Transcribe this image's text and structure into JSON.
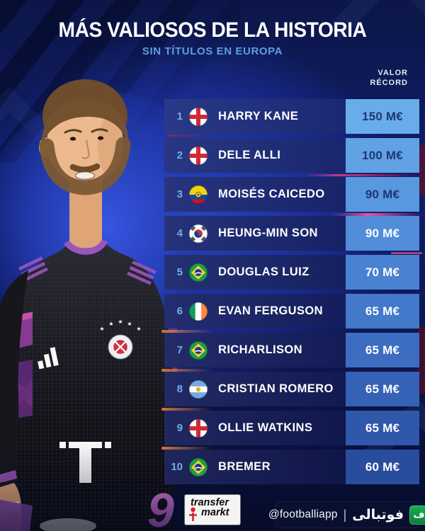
{
  "header": {
    "title": "MÁS VALIOSOS DE LA HISTORIA",
    "subtitle": "SIN TÍTULOS EN EUROPA"
  },
  "value_header": {
    "line1": "VALOR",
    "line2": "RÉCORD"
  },
  "table": {
    "rows": [
      {
        "rank": "1",
        "flag": "england",
        "name": "HARRY KANE",
        "value": "150 M€",
        "name_bg": "#1d2d80",
        "value_bg": "#68ade9",
        "value_color": "#1e3576"
      },
      {
        "rank": "2",
        "flag": "england",
        "name": "DELE ALLI",
        "value": "100 M€",
        "name_bg": "#1c2b7b",
        "value_bg": "#60a2e4",
        "value_color": "#1e3576"
      },
      {
        "rank": "3",
        "flag": "ecuador",
        "name": "MOISÉS CAICEDO",
        "value": "90 M€",
        "name_bg": "#1a2876",
        "value_bg": "#5898df",
        "value_color": "#1e3576"
      },
      {
        "rank": "4",
        "flag": "south-korea",
        "name": "HEUNG-MIN SON",
        "value": "90 M€",
        "name_bg": "#192671",
        "value_bg": "#518dd9",
        "value_color": "#ffffff"
      },
      {
        "rank": "5",
        "flag": "brazil",
        "name": "DOUGLAS LUIZ",
        "value": "70 M€",
        "name_bg": "#18246b",
        "value_bg": "#4a82d2",
        "value_color": "#ffffff"
      },
      {
        "rank": "6",
        "flag": "ireland",
        "name": "EVAN FERGUSON",
        "value": "65 M€",
        "name_bg": "#162166",
        "value_bg": "#4378ca",
        "value_color": "#ffffff"
      },
      {
        "rank": "7",
        "flag": "brazil",
        "name": "RICHARLISON",
        "value": "65 M€",
        "name_bg": "#151f60",
        "value_bg": "#3c6dc1",
        "value_color": "#ffffff"
      },
      {
        "rank": "8",
        "flag": "argentina",
        "name": "CRISTIAN ROMERO",
        "value": "65 M€",
        "name_bg": "#141d5b",
        "value_bg": "#3562b6",
        "value_color": "#ffffff"
      },
      {
        "rank": "9",
        "flag": "england",
        "name": "OLLIE WATKINS",
        "value": "65 M€",
        "name_bg": "#121a55",
        "value_bg": "#2f57aa",
        "value_color": "#ffffff"
      },
      {
        "rank": "10",
        "flag": "brazil",
        "name": "BREMER",
        "value": "60 M€",
        "name_bg": "#111850",
        "value_bg": "#294d9d",
        "value_color": "#ffffff"
      }
    ]
  },
  "chart_data": {
    "type": "table",
    "title": "MÁS VALIOSOS DE LA HISTORIA",
    "subtitle": "SIN TÍTULOS EN EUROPA",
    "value_label": "VALOR RÉCORD",
    "unit": "M€",
    "rows": [
      {
        "rank": 1,
        "player": "Harry Kane",
        "country": "England",
        "value_meur": 150
      },
      {
        "rank": 2,
        "player": "Dele Alli",
        "country": "England",
        "value_meur": 100
      },
      {
        "rank": 3,
        "player": "Moisés Caicedo",
        "country": "Ecuador",
        "value_meur": 90
      },
      {
        "rank": 4,
        "player": "Heung-Min Son",
        "country": "South Korea",
        "value_meur": 90
      },
      {
        "rank": 5,
        "player": "Douglas Luiz",
        "country": "Brazil",
        "value_meur": 70
      },
      {
        "rank": 6,
        "player": "Evan Ferguson",
        "country": "Ireland",
        "value_meur": 65
      },
      {
        "rank": 7,
        "player": "Richarlison",
        "country": "Brazil",
        "value_meur": 65
      },
      {
        "rank": 8,
        "player": "Cristian Romero",
        "country": "Argentina",
        "value_meur": 65
      },
      {
        "rank": 9,
        "player": "Ollie Watkins",
        "country": "England",
        "value_meur": 65
      },
      {
        "rank": 10,
        "player": "Bremer",
        "country": "Brazil",
        "value_meur": 60
      }
    ]
  },
  "player": {
    "shirt_number": "9"
  },
  "footer": {
    "transfermarkt": {
      "line1": "transfer",
      "line2": "markt"
    },
    "credit": {
      "handle": "@footballiapp",
      "divider": "|",
      "brand": "فوتبالی",
      "brand_initial": "ف"
    }
  },
  "colors": {
    "subtitle_blue": "#5f9fe0",
    "rank_blue": "#74aee9",
    "accent_magenta": "#c850aa",
    "footballi_green": "#12a14b",
    "value_text_navy": "#1e3576"
  }
}
